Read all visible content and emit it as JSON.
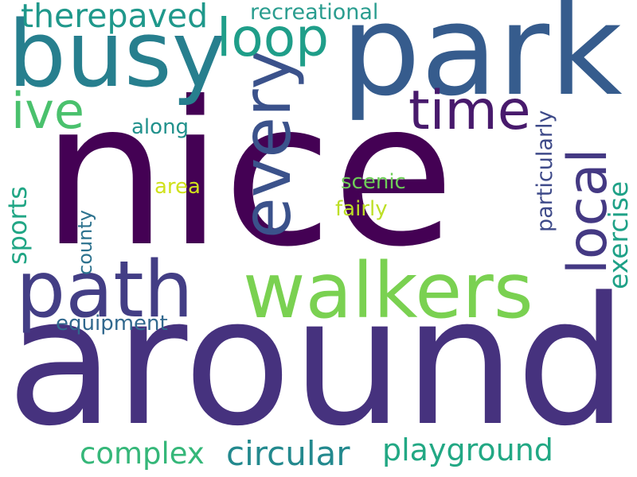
{
  "words": [
    {
      "key": "nice",
      "text": "nice",
      "color": "#440154"
    },
    {
      "key": "around",
      "text": "around",
      "color": "#46327e"
    },
    {
      "key": "park",
      "text": "park",
      "color": "#365c8d"
    },
    {
      "key": "busy",
      "text": "busy",
      "color": "#277f8e"
    },
    {
      "key": "walkers",
      "text": "walkers",
      "color": "#7ad151"
    },
    {
      "key": "path",
      "text": "path",
      "color": "#433e85"
    },
    {
      "key": "every",
      "text": "every",
      "color": "#3b528b"
    },
    {
      "key": "loop",
      "text": "loop",
      "color": "#1f9e89"
    },
    {
      "key": "local",
      "text": "local",
      "color": "#443983"
    },
    {
      "key": "time",
      "text": "time",
      "color": "#481a6c"
    },
    {
      "key": "ive",
      "text": "ive",
      "color": "#4ac16d"
    },
    {
      "key": "therepaved",
      "text": "therepaved",
      "color": "#1f988b"
    },
    {
      "key": "recreational",
      "text": "recreational",
      "color": "#2a9d8f"
    },
    {
      "key": "circular",
      "text": "circular",
      "color": "#23898e"
    },
    {
      "key": "playground",
      "text": "playground",
      "color": "#22a884"
    },
    {
      "key": "complex",
      "text": "complex",
      "color": "#35b779"
    },
    {
      "key": "sports",
      "text": "sports",
      "color": "#21a685"
    },
    {
      "key": "exercise",
      "text": "exercise",
      "color": "#1fa187"
    },
    {
      "key": "particularly",
      "text": "particularly",
      "color": "#3e4a89"
    },
    {
      "key": "equipment",
      "text": "equipment",
      "color": "#31688e"
    },
    {
      "key": "county",
      "text": "county",
      "color": "#2c728e"
    },
    {
      "key": "along",
      "text": "along",
      "color": "#21918c"
    },
    {
      "key": "scenic",
      "text": "scenic",
      "color": "#6ece58"
    },
    {
      "key": "fairly",
      "text": "fairly",
      "color": "#bddf26"
    },
    {
      "key": "area",
      "text": "area",
      "color": "#d0e11c"
    }
  ]
}
